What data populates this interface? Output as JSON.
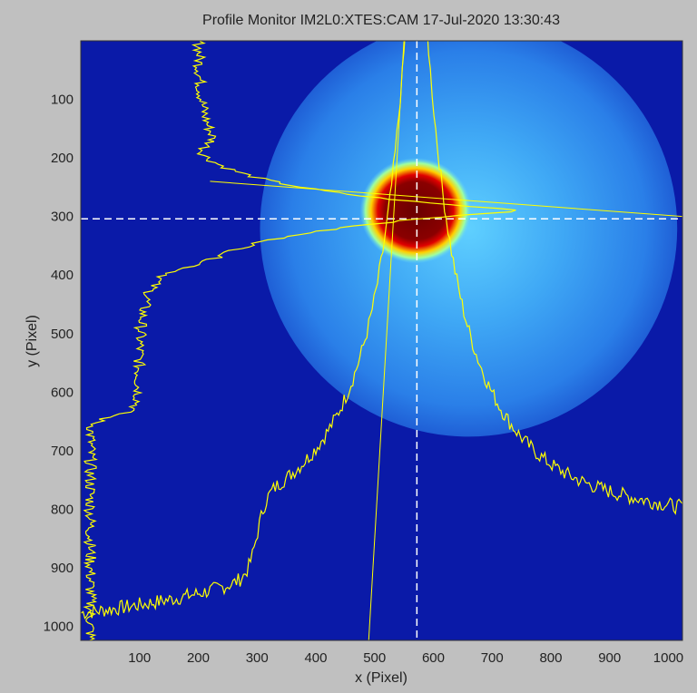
{
  "chart_data": {
    "type": "heatmap",
    "title": "Profile Monitor IM2L0:XTES:CAM 17-Jul-2020 13:30:43",
    "xlabel": "x  (Pixel)",
    "ylabel": "y  (Pixel)",
    "xlim": [
      0,
      1024
    ],
    "ylim": [
      1024,
      0
    ],
    "xticks": [
      100,
      200,
      300,
      400,
      500,
      600,
      700,
      800,
      900,
      1000
    ],
    "yticks": [
      100,
      200,
      300,
      400,
      500,
      600,
      700,
      800,
      900,
      1000
    ],
    "colormap": "jet",
    "background_color": "#0a1aa8",
    "profile_color": "#ffff00",
    "crosshair": {
      "x": 572,
      "y": 304
    },
    "beam_centroid": {
      "x": 570,
      "y": 290
    },
    "halo_center": {
      "x": 660,
      "y": 320
    },
    "halo_radius": 355,
    "grid": false
  }
}
